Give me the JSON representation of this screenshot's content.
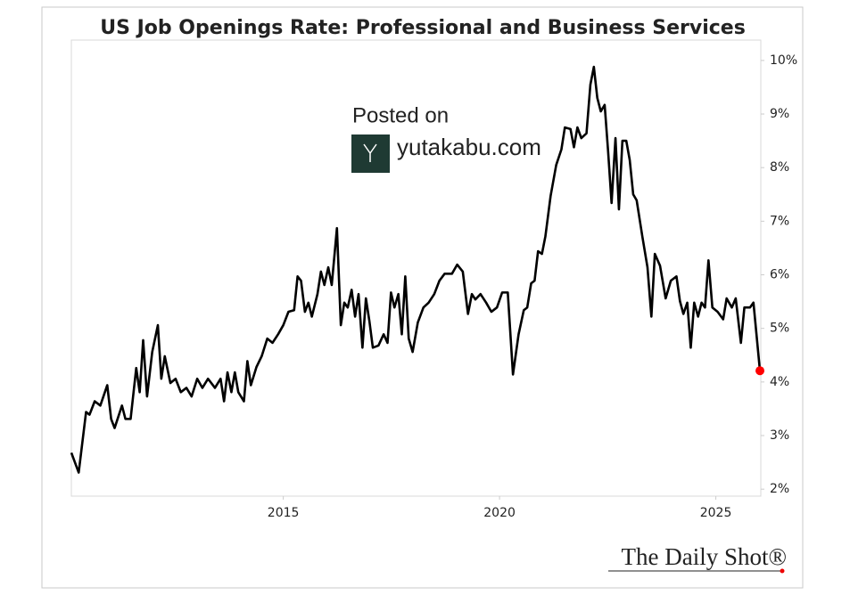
{
  "chart_data": {
    "type": "line",
    "title": "US Job Openings Rate: Professional and Business Services",
    "x": [
      2010.1,
      2010.27,
      2010.44,
      2010.52,
      2010.64,
      2010.77,
      2010.93,
      2011.02,
      2011.1,
      2011.27,
      2011.35,
      2011.47,
      2011.6,
      2011.68,
      2011.76,
      2011.85,
      2011.97,
      2012.1,
      2012.18,
      2012.26,
      2012.39,
      2012.51,
      2012.63,
      2012.76,
      2012.88,
      2013.01,
      2013.13,
      2013.26,
      2013.42,
      2013.55,
      2013.63,
      2013.71,
      2013.8,
      2013.88,
      2013.96,
      2014.09,
      2014.17,
      2014.25,
      2014.38,
      2014.5,
      2014.63,
      2014.75,
      2014.88,
      2015.0,
      2015.12,
      2015.25,
      2015.33,
      2015.41,
      2015.5,
      2015.58,
      2015.66,
      2015.79,
      2015.87,
      2015.95,
      2016.04,
      2016.12,
      2016.24,
      2016.33,
      2016.41,
      2016.49,
      2016.58,
      2016.66,
      2016.74,
      2016.83,
      2016.91,
      2016.99,
      2017.07,
      2017.2,
      2017.32,
      2017.41,
      2017.49,
      2017.57,
      2017.66,
      2017.74,
      2017.82,
      2017.9,
      2017.99,
      2018.11,
      2018.24,
      2018.36,
      2018.49,
      2018.61,
      2018.73,
      2018.9,
      2019.02,
      2019.15,
      2019.27,
      2019.36,
      2019.44,
      2019.56,
      2019.69,
      2019.81,
      2019.94,
      2020.06,
      2020.19,
      2020.31,
      2020.44,
      2020.56,
      2020.64,
      2020.73,
      2020.81,
      2020.89,
      2020.98,
      2021.06,
      2021.18,
      2021.31,
      2021.43,
      2021.51,
      2021.64,
      2021.72,
      2021.8,
      2021.89,
      2022.01,
      2022.1,
      2022.18,
      2022.26,
      2022.34,
      2022.43,
      2022.51,
      2022.59,
      2022.68,
      2022.76,
      2022.84,
      2022.93,
      2023.01,
      2023.09,
      2023.17,
      2023.3,
      2023.42,
      2023.51,
      2023.59,
      2023.71,
      2023.84,
      2023.96,
      2024.09,
      2024.17,
      2024.25,
      2024.34,
      2024.42,
      2024.5,
      2024.59,
      2024.67,
      2024.75,
      2024.83,
      2024.92,
      2025.04,
      2025.17,
      2025.25,
      2025.37,
      2025.46,
      2025.58,
      2025.66,
      2025.79,
      2025.87,
      2026.02
    ],
    "values": [
      2.68,
      2.31,
      3.44,
      3.39,
      3.64,
      3.56,
      3.94,
      3.31,
      3.14,
      3.56,
      3.31,
      3.31,
      4.26,
      3.81,
      4.78,
      3.73,
      4.56,
      5.06,
      4.06,
      4.48,
      3.98,
      4.06,
      3.81,
      3.89,
      3.73,
      4.06,
      3.89,
      4.06,
      3.89,
      4.06,
      3.64,
      4.18,
      3.81,
      4.18,
      3.81,
      3.64,
      4.39,
      3.94,
      4.28,
      4.48,
      4.81,
      4.73,
      4.89,
      5.06,
      5.31,
      5.34,
      5.97,
      5.89,
      5.31,
      5.48,
      5.22,
      5.64,
      6.06,
      5.81,
      6.14,
      5.81,
      6.87,
      5.06,
      5.48,
      5.39,
      5.72,
      5.22,
      5.64,
      4.64,
      5.56,
      5.14,
      4.64,
      4.68,
      4.89,
      4.73,
      5.67,
      5.39,
      5.64,
      4.89,
      5.97,
      4.81,
      4.56,
      5.11,
      5.39,
      5.48,
      5.64,
      5.89,
      6.02,
      6.02,
      6.19,
      6.06,
      5.27,
      5.64,
      5.54,
      5.64,
      5.48,
      5.31,
      5.39,
      5.67,
      5.67,
      4.14,
      4.89,
      5.34,
      5.39,
      5.84,
      5.89,
      6.44,
      6.39,
      6.72,
      7.47,
      8.05,
      8.34,
      8.75,
      8.72,
      8.38,
      8.75,
      8.55,
      8.64,
      9.55,
      9.88,
      9.3,
      9.05,
      9.17,
      8.3,
      7.34,
      8.55,
      7.22,
      8.5,
      8.5,
      8.14,
      7.5,
      7.39,
      6.72,
      6.14,
      5.22,
      6.39,
      6.17,
      5.56,
      5.89,
      5.97,
      5.51,
      5.27,
      5.48,
      4.64,
      5.48,
      5.22,
      5.48,
      5.39,
      6.27,
      5.39,
      5.31,
      5.17,
      5.56,
      5.39,
      5.56,
      4.73,
      5.39,
      5.39,
      5.48,
      4.21
    ],
    "color": "#000000",
    "last_point_color": "#ff0000",
    "xlim": [
      2010.1,
      2026.04
    ],
    "xticks": [
      2015,
      2020,
      2025
    ],
    "ylim": [
      1.87,
      10.38
    ],
    "yticks": [
      {
        "value": 2,
        "label": "2%"
      },
      {
        "value": 3,
        "label": "3%"
      },
      {
        "value": 4,
        "label": "4%"
      },
      {
        "value": 5,
        "label": "5%"
      },
      {
        "value": 6,
        "label": "6%"
      },
      {
        "value": 7,
        "label": "7%"
      },
      {
        "value": 8,
        "label": "8%"
      },
      {
        "value": 9,
        "label": "9%"
      },
      {
        "value": 10,
        "label": "10%"
      }
    ],
    "y_axis_side": "right",
    "grid": false
  },
  "watermark": {
    "line1": "Posted on",
    "site": "yutakabu.com"
  },
  "source": "The Daily Shot®"
}
